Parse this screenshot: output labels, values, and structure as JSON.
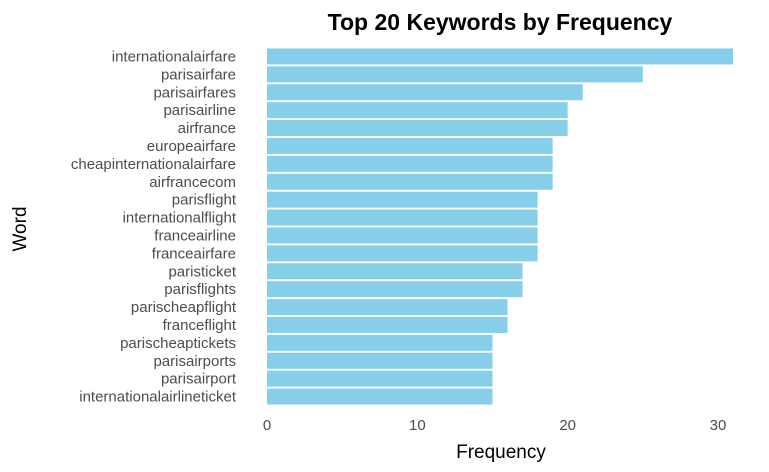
{
  "chart_data": {
    "type": "bar",
    "orientation": "horizontal",
    "title": "Top 20 Keywords by Frequency",
    "xlabel": "Frequency",
    "ylabel": "Word",
    "xlim": [
      0,
      31
    ],
    "xticks": [
      0,
      10,
      20,
      30
    ],
    "grid": false,
    "bar_color": "#87CEEB",
    "categories": [
      "internationalairfare",
      "parisairfare",
      "parisairfares",
      "parisairline",
      "airfrance",
      "europeairfare",
      "cheapinternationalairfare",
      "airfrancecom",
      "parisflight",
      "internationalflight",
      "franceairline",
      "franceairfare",
      "paristicket",
      "parisflights",
      "parischeapflight",
      "franceflight",
      "parischeaptickets",
      "parisairports",
      "parisairport",
      "internationalairlineticket"
    ],
    "values": [
      31,
      25,
      21,
      20,
      20,
      19,
      19,
      19,
      18,
      18,
      18,
      18,
      17,
      17,
      16,
      16,
      15,
      15,
      15,
      15
    ]
  }
}
